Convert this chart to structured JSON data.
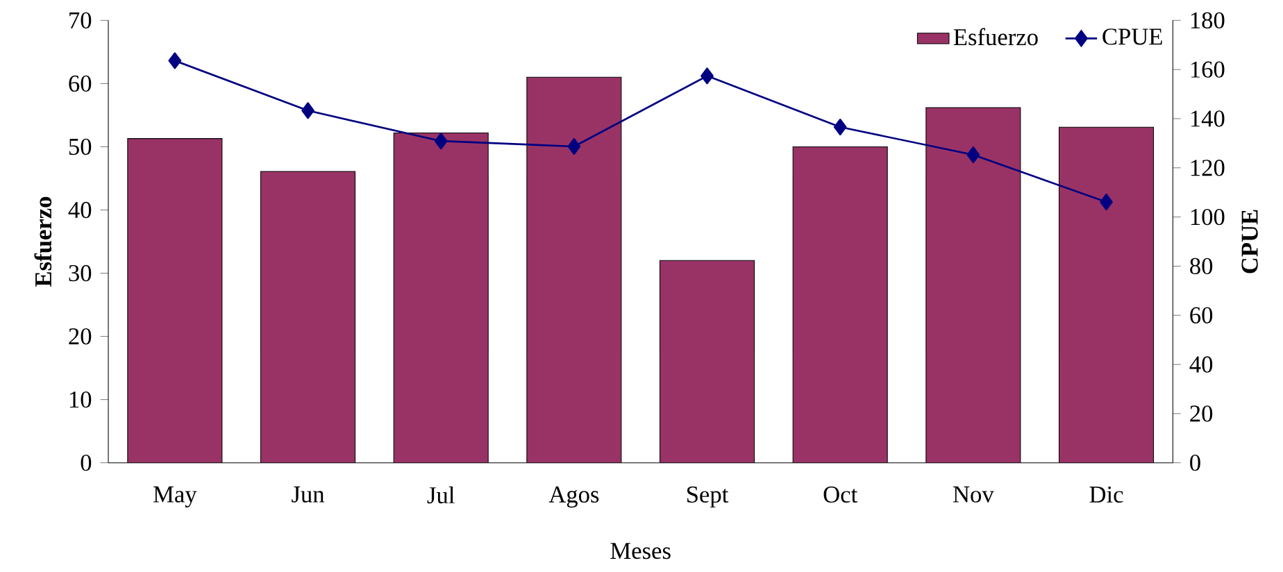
{
  "chart_data": {
    "type": "bar",
    "xlabel": "Meses",
    "ylabel": "Esfuerzo",
    "y2label": "CPUE",
    "categories": [
      "May",
      "Jun",
      "Jul",
      "Agos",
      "Sept",
      "Oct",
      "Nov",
      "Dic"
    ],
    "series": [
      {
        "name": "Esfuerzo",
        "color": "#993366",
        "values": [
          51.3,
          46.1,
          52.2,
          61.0,
          32.0,
          50.0,
          56.2,
          53.1
        ]
      },
      {
        "name": "CPUE",
        "type": "line",
        "axis": "y2",
        "color": "#000080",
        "marker": "diamond",
        "values": [
          163.6,
          143.3,
          130.9,
          128.7,
          157.4,
          136.6,
          125.3,
          106.1
        ]
      }
    ],
    "ylim": [
      0,
      70
    ],
    "yticks": [
      0,
      10,
      20,
      30,
      40,
      50,
      60,
      70
    ],
    "y2lim": [
      0,
      180
    ],
    "y2ticks": [
      0,
      20,
      40,
      60,
      80,
      100,
      120,
      140,
      160,
      180
    ],
    "grid": false,
    "legend": "top right"
  }
}
